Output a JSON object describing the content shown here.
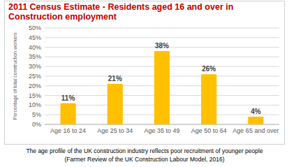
{
  "chart_data": {
    "type": "bar",
    "title": "2011 Census Estimate - Residents aged 16 and over in Construction employment",
    "y_label": "Percentage of total construction workers",
    "categories": [
      "Age 16 to 24",
      "Age 25 to 34",
      "Age 35 to 49",
      "Age 50 to 64",
      "Age 65 and over"
    ],
    "values": [
      11,
      21,
      38,
      26,
      4
    ],
    "value_labels": [
      "11%",
      "21%",
      "38%",
      "26%",
      "4%"
    ],
    "color": "#ffc000",
    "ylim": [
      0,
      50
    ],
    "yticks": [
      {
        "value": 0,
        "label": "0%"
      },
      {
        "value": 5,
        "label": "5%"
      },
      {
        "value": 10,
        "label": "10%"
      },
      {
        "value": 15,
        "label": "15%"
      },
      {
        "value": 20,
        "label": "20%"
      },
      {
        "value": 25,
        "label": "25%"
      },
      {
        "value": 30,
        "label": "30%"
      },
      {
        "value": 35,
        "label": "35%"
      },
      {
        "value": 40,
        "label": "40%"
      },
      {
        "value": 45,
        "label": "45%"
      },
      {
        "value": 50,
        "label": "50%"
      }
    ],
    "grid": true,
    "data_labels": true,
    "annotations": [
      "The age profile of the UK construction industry reflects poor recruitment of younger people",
      "(Farmer Review of the UK Construction Labour Model, 2016)"
    ]
  }
}
